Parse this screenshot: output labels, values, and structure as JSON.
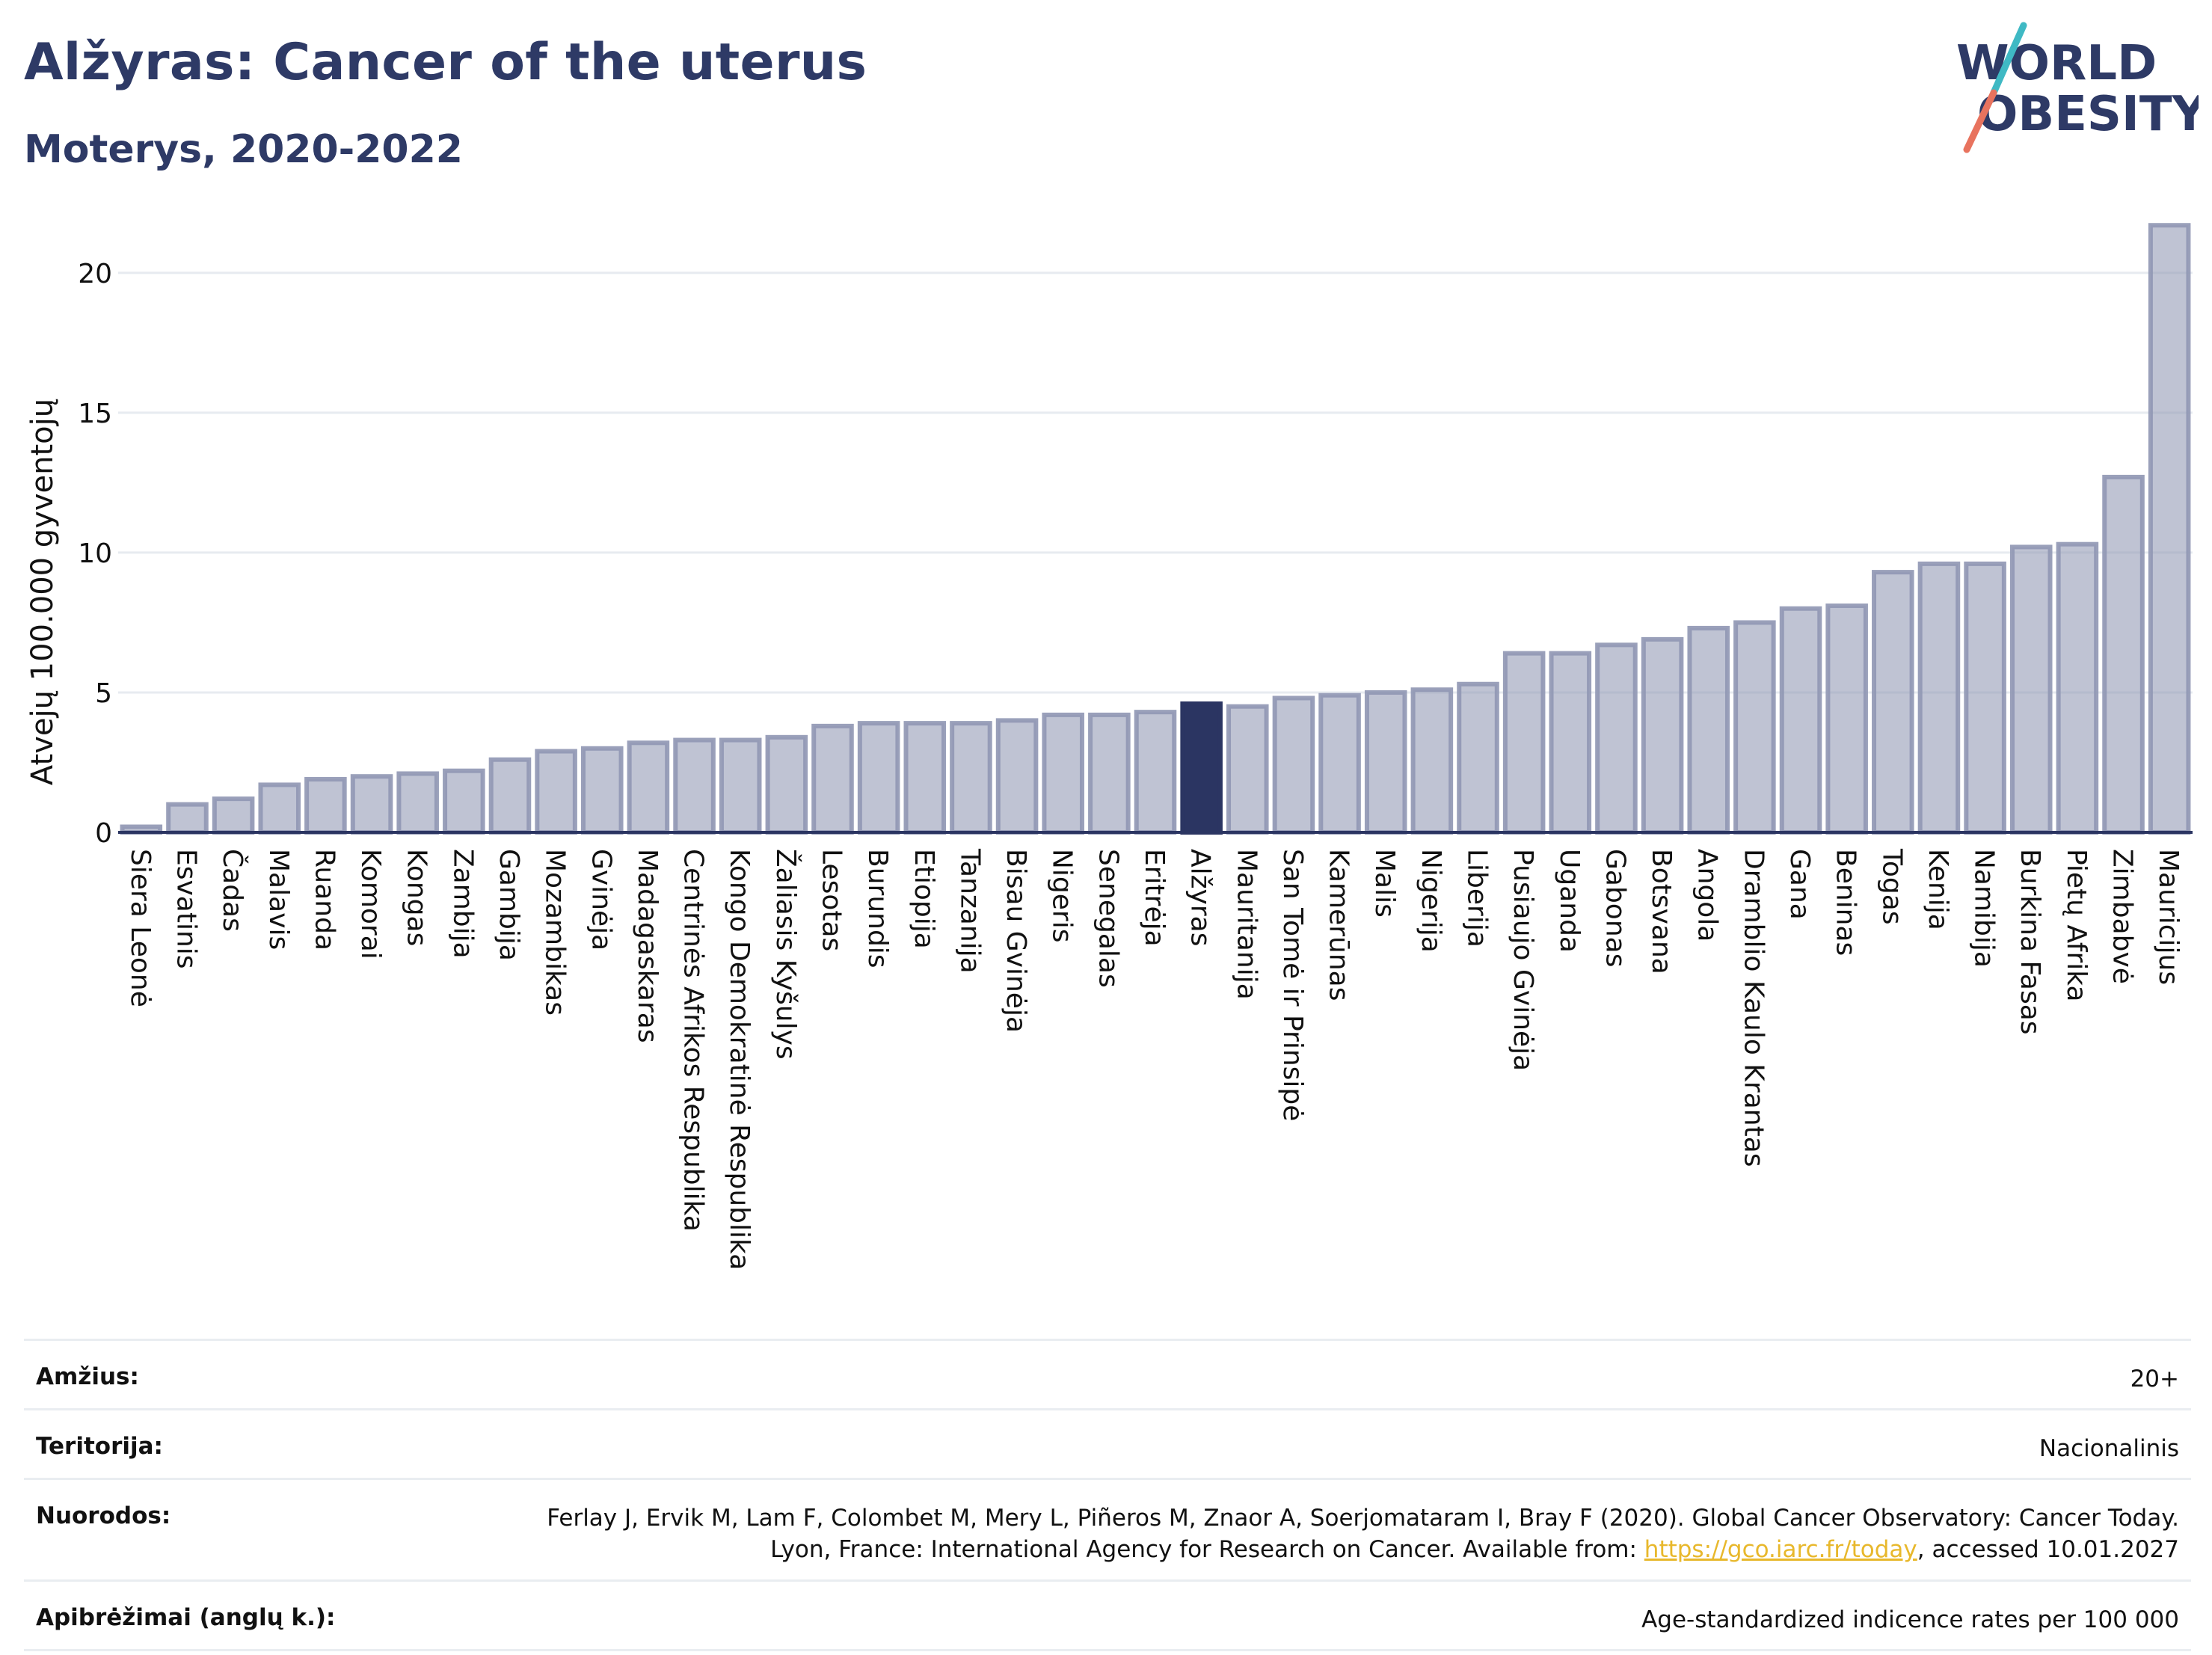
{
  "header": {
    "title": "Alžyras: Cancer of the uterus",
    "subtitle": "Moterys, 2020-2022"
  },
  "logo": {
    "line1": "WORLD",
    "line2": "OBESITY",
    "colors": [
      "#2e3a66",
      "#e8735e",
      "#3fb9c4"
    ]
  },
  "chart_data": {
    "type": "bar",
    "ylabel": "Atvejų 100.000 gyventojų",
    "ylim": [
      0,
      22
    ],
    "yticks": [
      0,
      5,
      10,
      15,
      20
    ],
    "grid": true,
    "highlight": "Alžyras",
    "colors": {
      "bar": "#9198b4",
      "highlight": "#2b3562"
    },
    "categories": [
      "Siera Leonė",
      "Esvatinis",
      "Čadas",
      "Malavis",
      "Ruanda",
      "Komorai",
      "Kongas",
      "Zambija",
      "Gambija",
      "Mozambikas",
      "Gvinėja",
      "Madagaskaras",
      "Centrinės Afrikos Respublika",
      "Kongo Demokratinė Respublika",
      "Žaliasis Kyšulys",
      "Lesotas",
      "Burundis",
      "Etiopija",
      "Tanzanija",
      "Bisau Gvinėja",
      "Nigeris",
      "Senegalas",
      "Eritrėja",
      "Alžyras",
      "Mauritanija",
      "San Tomė ir Prinsipė",
      "Kamerūnas",
      "Malis",
      "Nigerija",
      "Liberija",
      "Pusiaujo Gvinėja",
      "Uganda",
      "Gabonas",
      "Botsvana",
      "Angola",
      "Dramblio Kaulo Krantas",
      "Gana",
      "Beninas",
      "Togas",
      "Kenija",
      "Namibija",
      "Burkina Fasas",
      "Pietų Afrika",
      "Zimbabvė",
      "Mauricijus"
    ],
    "values": [
      0.2,
      1.0,
      1.2,
      1.7,
      1.9,
      2.0,
      2.1,
      2.2,
      2.6,
      2.9,
      3.0,
      3.2,
      3.3,
      3.3,
      3.4,
      3.8,
      3.9,
      3.9,
      3.9,
      4.0,
      4.2,
      4.2,
      4.3,
      4.6,
      4.5,
      4.8,
      4.9,
      5.0,
      5.1,
      5.3,
      6.4,
      6.4,
      6.7,
      6.9,
      7.3,
      7.5,
      8.0,
      8.1,
      9.3,
      9.6,
      9.6,
      10.2,
      10.3,
      12.7,
      21.7
    ]
  },
  "info": {
    "rows": [
      {
        "key": "Amžius:",
        "value": "20+"
      },
      {
        "key": "Teritorija:",
        "value": "Nacionalinis"
      },
      {
        "key": "Nuorodos:",
        "value_before": "Ferlay J, Ervik M, Lam F, Colombet M, Mery L, Piñeros M, Znaor A, Soerjomataram I, Bray F (2020). Global Cancer Observatory: Cancer Today. Lyon, France: International Agency for Research on Cancer. Available from: ",
        "link": "https://gco.iarc.fr/today",
        "value_after": ", accessed 10.01.2027"
      },
      {
        "key": "Apibrėžimai (anglų k.):",
        "value": "Age-standardized indicence rates per 100 000"
      }
    ]
  }
}
